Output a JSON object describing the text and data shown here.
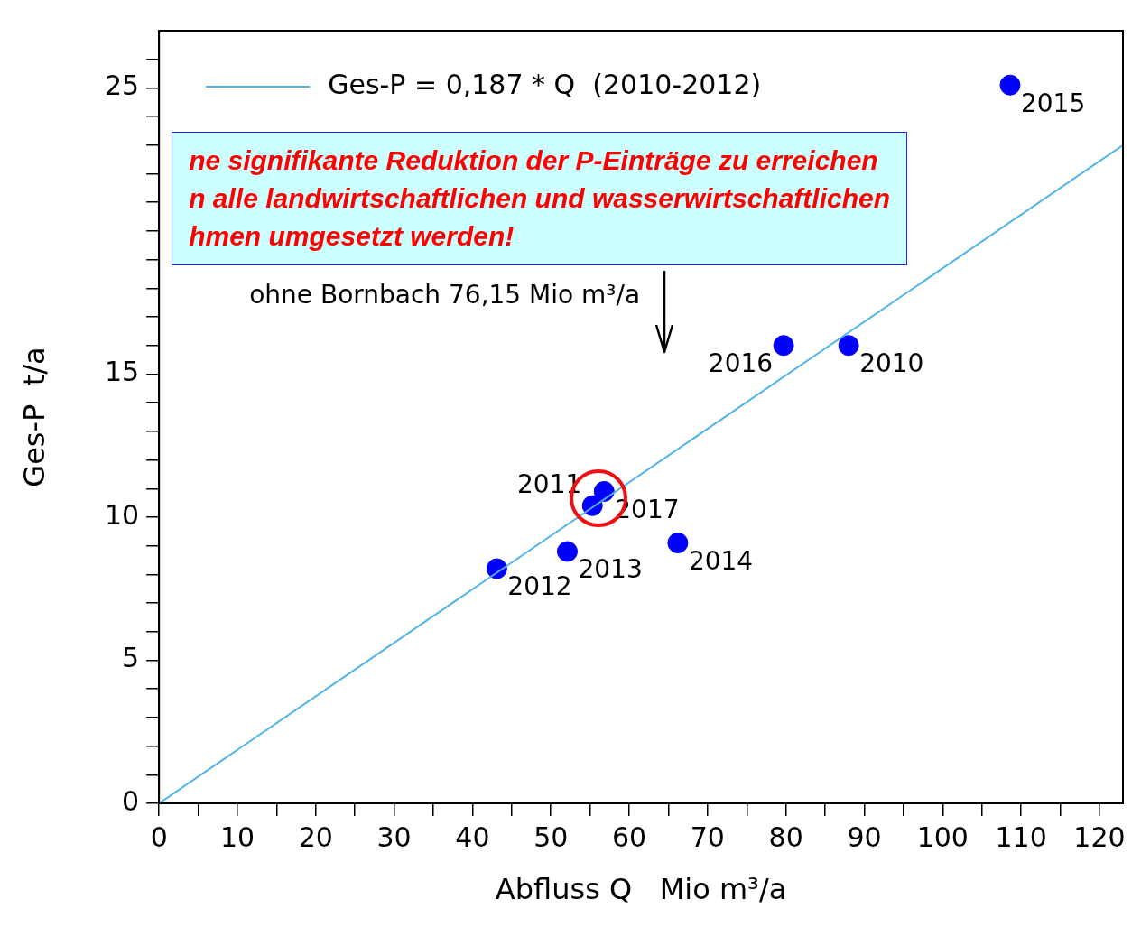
{
  "chart_data": {
    "type": "scatter",
    "xlabel": "Abfluss Q   Mio m³/a",
    "ylabel": "Ges-P  t/a",
    "xlim": [
      0,
      123
    ],
    "ylim": [
      0,
      27
    ],
    "xticks": [
      0,
      {
        "value": 5,
        "label": null
      },
      10,
      {
        "value": 15,
        "label": null
      },
      20,
      {
        "value": 25,
        "label": null
      },
      30,
      {
        "value": 35,
        "label": null
      },
      40,
      {
        "value": 45,
        "label": null
      },
      50,
      {
        "value": 55,
        "label": null
      },
      60,
      {
        "value": 65,
        "label": null
      },
      70,
      {
        "value": 75,
        "label": null
      },
      80,
      {
        "value": 85,
        "label": null
      },
      90,
      {
        "value": 95,
        "label": null
      },
      100,
      {
        "value": 105,
        "label": null
      },
      110,
      {
        "value": 115,
        "label": null
      },
      120
    ],
    "yticks": [
      0,
      {
        "value": 1,
        "label": null
      },
      {
        "value": 2,
        "label": null
      },
      {
        "value": 3,
        "label": null
      },
      {
        "value": 4,
        "label": null
      },
      5,
      {
        "value": 6,
        "label": null
      },
      {
        "value": 7,
        "label": null
      },
      {
        "value": 8,
        "label": null
      },
      {
        "value": 9,
        "label": null
      },
      10,
      {
        "value": 11,
        "label": null
      },
      {
        "value": 12,
        "label": null
      },
      {
        "value": 13,
        "label": null
      },
      {
        "value": 14,
        "label": null
      },
      15,
      {
        "value": 16,
        "label": null
      },
      {
        "value": 17,
        "label": null
      },
      {
        "value": 18,
        "label": null
      },
      {
        "value": 19,
        "label": null
      },
      {
        "value": 20,
        "label": null
      },
      {
        "value": 21,
        "label": null
      },
      {
        "value": 22,
        "label": null
      },
      {
        "value": 23,
        "label": null
      },
      {
        "value": 24,
        "label": null
      },
      25,
      {
        "value": 26,
        "label": null
      }
    ],
    "grid": false,
    "legend": "top left",
    "series": [
      {
        "type": "line",
        "name": "Ges-P = 0,187 * Q  (2010-2012)",
        "color": "#4fb3e8",
        "marker": "none",
        "line_style": "solid",
        "x": [
          0,
          123
        ],
        "values": [
          0,
          23.0
        ]
      },
      {
        "color": "#0000ff",
        "marker": "circle",
        "x": [
          108.6,
          79.7,
          88.0,
          55.3,
          56.8,
          66.2,
          52.1,
          43.1
        ],
        "values": [
          25.1,
          16.0,
          16.0,
          10.4,
          10.9,
          9.1,
          8.8,
          8.2
        ]
      }
    ],
    "annotations": [
      "ne signifikante Reduktion der P-Einträge zu erreichen",
      "n alle landwirtschaftlichen und wasserwirtschaftlichen",
      "hmen umgesetzt werden!",
      "ohne Bornbach 76,15 Mio m³/a",
      {
        "text": "2015",
        "x": 108.6,
        "y": 25.1
      },
      {
        "text": "2016",
        "x": 79.7,
        "y": 16.0
      },
      {
        "text": "2010",
        "x": 88.0,
        "y": 16.0
      },
      {
        "text": "2011",
        "x": 55.3,
        "y": 10.4
      },
      {
        "text": "2017",
        "x": 56.8,
        "y": 10.9
      },
      {
        "text": "2014",
        "x": 66.2,
        "y": 9.1
      },
      {
        "text": "2013",
        "x": 52.1,
        "y": 8.8
      },
      {
        "text": "2012",
        "x": 43.1,
        "y": 8.2
      }
    ]
  }
}
